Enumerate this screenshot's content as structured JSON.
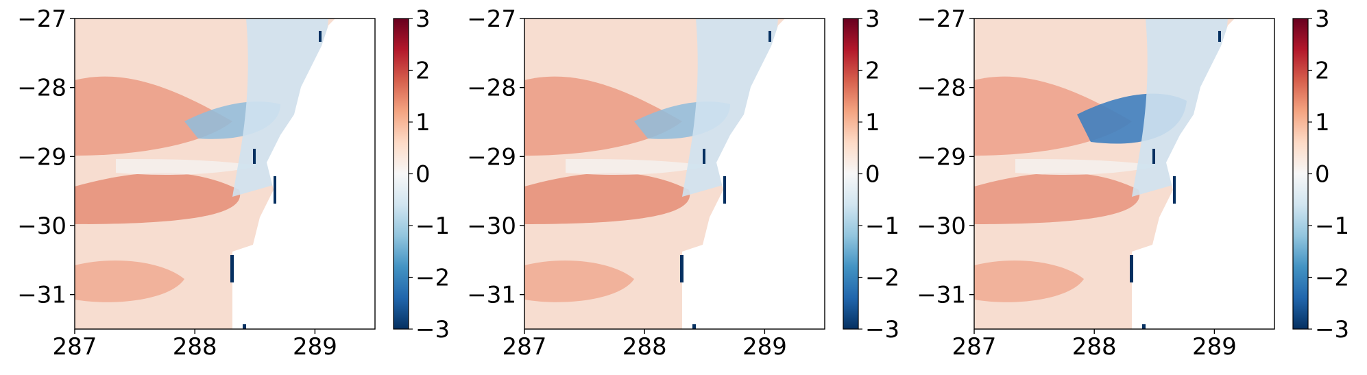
{
  "chart_data": [
    {
      "type": "heatmap",
      "title": "",
      "xlabel": "",
      "ylabel": "",
      "xlim": [
        287,
        289.5
      ],
      "ylim": [
        -31.5,
        -27
      ],
      "x_ticks": [
        "287",
        "288",
        "289"
      ],
      "y_ticks": [
        "−27",
        "−28",
        "−29",
        "−30",
        "−31"
      ],
      "colorbar": {
        "colormap": "RdBu_r",
        "range": [
          -3,
          3
        ],
        "ticks": [
          "3",
          "2",
          "1",
          "0",
          "−1",
          "−2",
          "−3"
        ]
      },
      "grid": false
    },
    {
      "type": "heatmap",
      "title": "",
      "xlabel": "",
      "ylabel": "",
      "xlim": [
        287,
        289.5
      ],
      "ylim": [
        -31.5,
        -27
      ],
      "x_ticks": [
        "287",
        "288",
        "289"
      ],
      "y_ticks": [
        "−27",
        "−28",
        "−29",
        "−30",
        "−31"
      ],
      "colorbar": {
        "colormap": "RdBu_r",
        "range": [
          -3,
          3
        ],
        "ticks": [
          "3",
          "2",
          "1",
          "0",
          "−1",
          "−2",
          "−3"
        ]
      },
      "grid": false
    },
    {
      "type": "heatmap",
      "title": "",
      "xlabel": "",
      "ylabel": "",
      "xlim": [
        287,
        289.5
      ],
      "ylim": [
        -31.5,
        -27
      ],
      "x_ticks": [
        "287",
        "288",
        "289"
      ],
      "y_ticks": [
        "−27",
        "−28",
        "−29",
        "−30",
        "−31"
      ],
      "colorbar": {
        "colormap": "RdBu_r",
        "range": [
          -3,
          3
        ],
        "ticks": [
          "3",
          "2",
          "1",
          "0",
          "−1",
          "−2",
          "−3"
        ]
      },
      "grid": false
    }
  ],
  "colors": {
    "land": "#ffffff",
    "cmap_stops": [
      "#053061",
      "#2166ac",
      "#4393c3",
      "#92c5de",
      "#d1e5f0",
      "#f7f7f7",
      "#fddbc7",
      "#f4a582",
      "#d6604d",
      "#b2182b",
      "#67001f"
    ]
  }
}
